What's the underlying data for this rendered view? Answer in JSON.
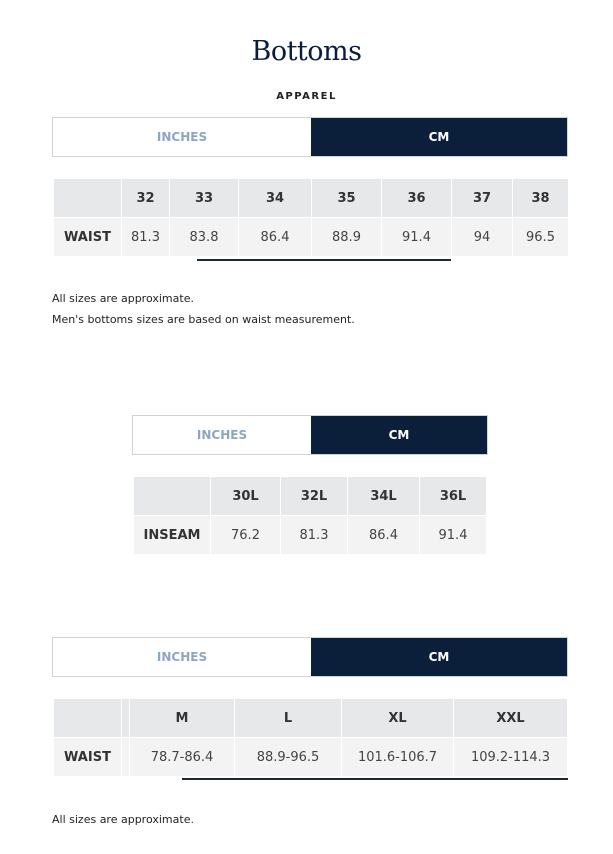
{
  "title": "Bottoms",
  "subtitle": "APPAREL",
  "colors": {
    "accent": "#0b1f3b",
    "inactive_text": "#8ea6be"
  },
  "unit_toggle": {
    "inches": "INCHES",
    "cm": "CM",
    "selected": "CM"
  },
  "waist_table": {
    "row_label": "WAIST",
    "headers": [
      "32",
      "33",
      "34",
      "35",
      "36",
      "37",
      "38"
    ],
    "values": [
      "81.3",
      "83.8",
      "86.4",
      "88.9",
      "91.4",
      "94",
      "96.5"
    ]
  },
  "notes": [
    "All sizes are approximate.",
    "Men's bottoms sizes are based on waist measurement."
  ],
  "inseam_table": {
    "row_label": "INSEAM",
    "headers": [
      "30L",
      "32L",
      "34L",
      "36L"
    ],
    "values": [
      "76.2",
      "81.3",
      "86.4",
      "91.4"
    ]
  },
  "letter_table": {
    "row_label": "WAIST",
    "headers": [
      "M",
      "L",
      "XL",
      "XXL"
    ],
    "values": [
      "78.7-86.4",
      "88.9-96.5",
      "101.6-106.7",
      "109.2-114.3"
    ]
  },
  "footer_note": "All sizes are approximate."
}
